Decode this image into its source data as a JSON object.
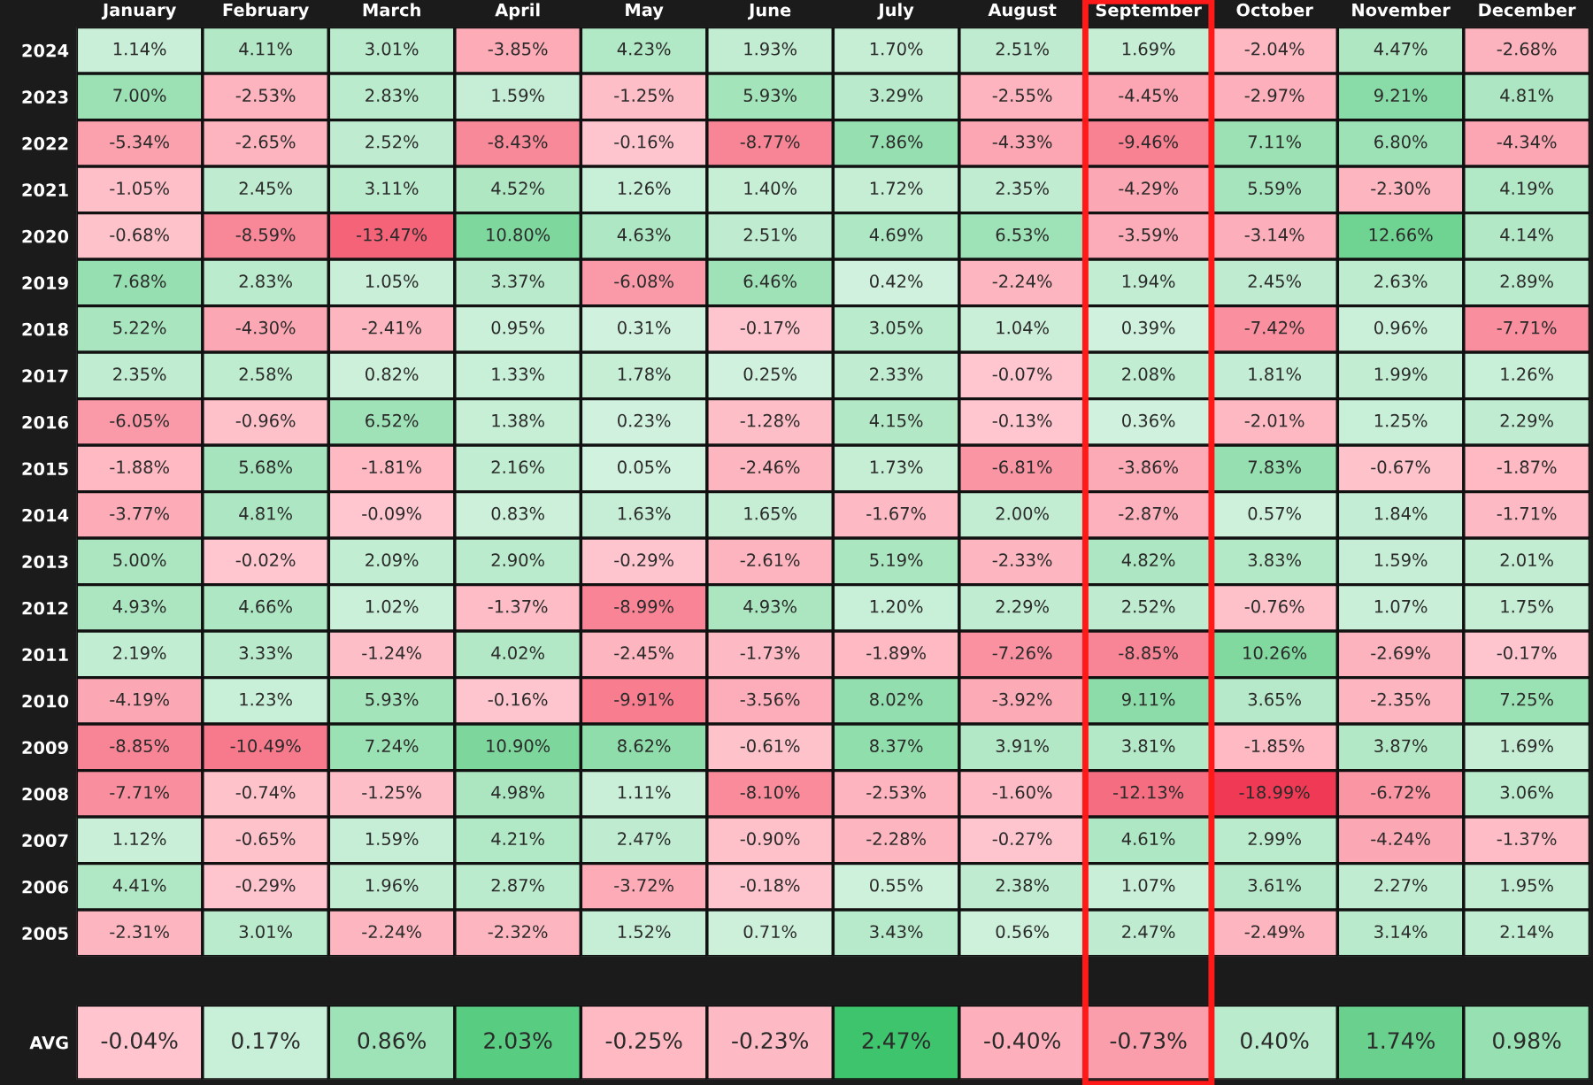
{
  "chart_data": [
    {
      "type": "heatmap",
      "categories": [
        "January",
        "February",
        "March",
        "April",
        "May",
        "June",
        "July",
        "August",
        "September",
        "October",
        "November",
        "December"
      ],
      "y_categories": [
        "2024",
        "2023",
        "2022",
        "2021",
        "2020",
        "2019",
        "2018",
        "2017",
        "2016",
        "2015",
        "2014",
        "2013",
        "2012",
        "2011",
        "2010",
        "2009",
        "2008",
        "2007",
        "2006",
        "2005"
      ],
      "cells": [
        [
          1.14,
          4.11,
          3.01,
          -3.85,
          4.23,
          1.93,
          1.7,
          2.51,
          1.69,
          -2.04,
          4.47,
          -2.68
        ],
        [
          7.0,
          -2.53,
          2.83,
          1.59,
          -1.25,
          5.93,
          3.29,
          -2.55,
          -4.45,
          -2.97,
          9.21,
          4.81
        ],
        [
          -5.34,
          -2.65,
          2.52,
          -8.43,
          -0.16,
          -8.77,
          7.86,
          -4.33,
          -9.46,
          7.11,
          6.8,
          -4.34
        ],
        [
          -1.05,
          2.45,
          3.11,
          4.52,
          1.26,
          1.4,
          1.72,
          2.35,
          -4.29,
          5.59,
          -2.3,
          4.19
        ],
        [
          -0.68,
          -8.59,
          -13.47,
          10.8,
          4.63,
          2.51,
          4.69,
          6.53,
          -3.59,
          -3.14,
          12.66,
          4.14
        ],
        [
          7.68,
          2.83,
          1.05,
          3.37,
          -6.08,
          6.46,
          0.42,
          -2.24,
          1.94,
          2.45,
          2.63,
          2.89
        ],
        [
          5.22,
          -4.3,
          -2.41,
          0.95,
          0.31,
          -0.17,
          3.05,
          1.04,
          0.39,
          -7.42,
          0.96,
          -7.71
        ],
        [
          2.35,
          2.58,
          0.82,
          1.33,
          1.78,
          0.25,
          2.33,
          -0.07,
          2.08,
          1.81,
          1.99,
          1.26
        ],
        [
          -6.05,
          -0.96,
          6.52,
          1.38,
          0.23,
          -1.28,
          4.15,
          -0.13,
          0.36,
          -2.01,
          1.25,
          2.29
        ],
        [
          -1.88,
          5.68,
          -1.81,
          2.16,
          0.05,
          -2.46,
          1.73,
          -6.81,
          -3.86,
          7.83,
          -0.67,
          -1.87
        ],
        [
          -3.77,
          4.81,
          -0.09,
          0.83,
          1.63,
          1.65,
          -1.67,
          2.0,
          -2.87,
          0.57,
          1.84,
          -1.71
        ],
        [
          5.0,
          -0.02,
          2.09,
          2.9,
          -0.29,
          -2.61,
          5.19,
          -2.33,
          4.82,
          3.83,
          1.59,
          2.01
        ],
        [
          4.93,
          4.66,
          1.02,
          -1.37,
          -8.99,
          4.93,
          1.2,
          2.29,
          2.52,
          -0.76,
          1.07,
          1.75
        ],
        [
          2.19,
          3.33,
          -1.24,
          4.02,
          -2.45,
          -1.73,
          -1.89,
          -7.26,
          -8.85,
          10.26,
          -2.69,
          -0.17
        ],
        [
          -4.19,
          1.23,
          5.93,
          -0.16,
          -9.91,
          -3.56,
          8.02,
          -3.92,
          9.11,
          3.65,
          -2.35,
          7.25
        ],
        [
          -8.85,
          -10.49,
          7.24,
          10.9,
          8.62,
          -0.61,
          8.37,
          3.91,
          3.81,
          -1.85,
          3.87,
          1.69
        ],
        [
          -7.71,
          -0.74,
          -1.25,
          4.98,
          1.11,
          -8.1,
          -2.53,
          -1.6,
          -12.13,
          -18.99,
          -6.72,
          3.06
        ],
        [
          1.12,
          -0.65,
          1.59,
          4.21,
          2.47,
          -0.9,
          -2.28,
          -0.27,
          4.61,
          2.99,
          -4.24,
          -1.37
        ],
        [
          4.41,
          -0.29,
          1.96,
          2.87,
          -3.72,
          -0.18,
          0.55,
          2.38,
          1.07,
          3.61,
          2.27,
          1.95
        ],
        [
          -2.31,
          3.01,
          -2.24,
          -2.32,
          1.52,
          0.71,
          3.43,
          0.56,
          2.47,
          -2.49,
          3.14,
          2.14
        ]
      ],
      "cell_labels": [
        [
          "1.14%",
          "4.11%",
          "3.01%",
          "-3.85%",
          "4.23%",
          "1.93%",
          "1.70%",
          "2.51%",
          "1.69%",
          "-2.04%",
          "4.47%",
          "-2.68%"
        ],
        [
          "7.00%",
          "-2.53%",
          "2.83%",
          "1.59%",
          "-1.25%",
          "5.93%",
          "3.29%",
          "-2.55%",
          "-4.45%",
          "-2.97%",
          "9.21%",
          "4.81%"
        ],
        [
          "-5.34%",
          "-2.65%",
          "2.52%",
          "-8.43%",
          "-0.16%",
          "-8.77%",
          "7.86%",
          "-4.33%",
          "-9.46%",
          "7.11%",
          "6.80%",
          "-4.34%"
        ],
        [
          "-1.05%",
          "2.45%",
          "3.11%",
          "4.52%",
          "1.26%",
          "1.40%",
          "1.72%",
          "2.35%",
          "-4.29%",
          "5.59%",
          "-2.30%",
          "4.19%"
        ],
        [
          "-0.68%",
          "-8.59%",
          "-13.47%",
          "10.80%",
          "4.63%",
          "2.51%",
          "4.69%",
          "6.53%",
          "-3.59%",
          "-3.14%",
          "12.66%",
          "4.14%"
        ],
        [
          "7.68%",
          "2.83%",
          "1.05%",
          "3.37%",
          "-6.08%",
          "6.46%",
          "0.42%",
          "-2.24%",
          "1.94%",
          "2.45%",
          "2.63%",
          "2.89%"
        ],
        [
          "5.22%",
          "-4.30%",
          "-2.41%",
          "0.95%",
          "0.31%",
          "-0.17%",
          "3.05%",
          "1.04%",
          "0.39%",
          "-7.42%",
          "0.96%",
          "-7.71%"
        ],
        [
          "2.35%",
          "2.58%",
          "0.82%",
          "1.33%",
          "1.78%",
          "0.25%",
          "2.33%",
          "-0.07%",
          "2.08%",
          "1.81%",
          "1.99%",
          "1.26%"
        ],
        [
          "-6.05%",
          "-0.96%",
          "6.52%",
          "1.38%",
          "0.23%",
          "-1.28%",
          "4.15%",
          "-0.13%",
          "0.36%",
          "-2.01%",
          "1.25%",
          "2.29%"
        ],
        [
          "-1.88%",
          "5.68%",
          "-1.81%",
          "2.16%",
          "0.05%",
          "-2.46%",
          "1.73%",
          "-6.81%",
          "-3.86%",
          "7.83%",
          "-0.67%",
          "-1.87%"
        ],
        [
          "-3.77%",
          "4.81%",
          "-0.09%",
          "0.83%",
          "1.63%",
          "1.65%",
          "-1.67%",
          "2.00%",
          "-2.87%",
          "0.57%",
          "1.84%",
          "-1.71%"
        ],
        [
          "5.00%",
          "-0.02%",
          "2.09%",
          "2.90%",
          "-0.29%",
          "-2.61%",
          "5.19%",
          "-2.33%",
          "4.82%",
          "3.83%",
          "1.59%",
          "2.01%"
        ],
        [
          "4.93%",
          "4.66%",
          "1.02%",
          "-1.37%",
          "-8.99%",
          "4.93%",
          "1.20%",
          "2.29%",
          "2.52%",
          "-0.76%",
          "1.07%",
          "1.75%"
        ],
        [
          "2.19%",
          "3.33%",
          "-1.24%",
          "4.02%",
          "-2.45%",
          "-1.73%",
          "-1.89%",
          "-7.26%",
          "-8.85%",
          "10.26%",
          "-2.69%",
          "-0.17%"
        ],
        [
          "-4.19%",
          "1.23%",
          "5.93%",
          "-0.16%",
          "-9.91%",
          "-3.56%",
          "8.02%",
          "-3.92%",
          "9.11%",
          "3.65%",
          "-2.35%",
          "7.25%"
        ],
        [
          "-8.85%",
          "-10.49%",
          "7.24%",
          "10.90%",
          "8.62%",
          "-0.61%",
          "8.37%",
          "3.91%",
          "3.81%",
          "-1.85%",
          "3.87%",
          "1.69%"
        ],
        [
          "-7.71%",
          "-0.74%",
          "-1.25%",
          "4.98%",
          "1.11%",
          "-8.10%",
          "-2.53%",
          "-1.60%",
          "-12.13%",
          "-18.99%",
          "-6.72%",
          "3.06%"
        ],
        [
          "1.12%",
          "-0.65%",
          "1.59%",
          "4.21%",
          "2.47%",
          "-0.90%",
          "-2.28%",
          "-0.27%",
          "4.61%",
          "2.99%",
          "-4.24%",
          "-1.37%"
        ],
        [
          "4.41%",
          "-0.29%",
          "1.96%",
          "2.87%",
          "-3.72%",
          "-0.18%",
          "0.55%",
          "2.38%",
          "1.07%",
          "3.61%",
          "2.27%",
          "1.95%"
        ],
        [
          "-2.31%",
          "3.01%",
          "-2.24%",
          "-2.32%",
          "1.52%",
          "0.71%",
          "3.43%",
          "0.56%",
          "2.47%",
          "-2.49%",
          "3.14%",
          "2.14%"
        ]
      ]
    },
    {
      "type": "heatmap",
      "categories": [
        null,
        null,
        null,
        null,
        null,
        null,
        null,
        null,
        null,
        null,
        null,
        null
      ],
      "y_categories": [
        "AVG"
      ],
      "cells": [
        [
          -0.04,
          0.17,
          0.86,
          2.03,
          -0.25,
          -0.23,
          2.47,
          -0.4,
          -0.73,
          0.4,
          1.74,
          0.98
        ]
      ],
      "cell_labels": [
        [
          "-0.04%",
          "0.17%",
          "0.86%",
          "2.03%",
          "-0.25%",
          "-0.23%",
          "2.47%",
          "-0.40%",
          "-0.73%",
          "0.40%",
          "1.74%",
          "0.98%"
        ]
      ],
      "tick_labels": "y"
    }
  ]
}
